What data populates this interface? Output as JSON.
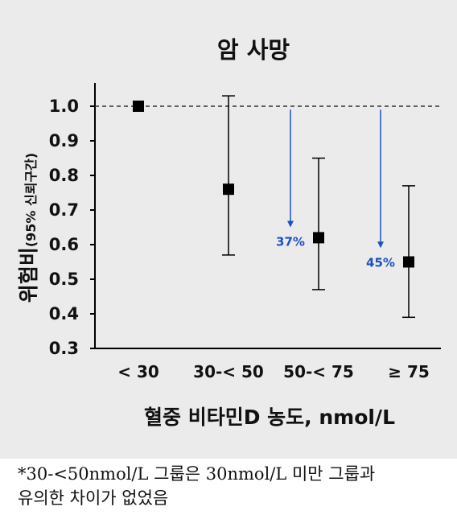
{
  "chart_data": {
    "type": "scatter",
    "title": "암 사망",
    "ylabel_main": "위험비",
    "ylabel_sub": "(95% 신뢰구간)",
    "xlabel": "혈중 비타민D 농도, nmol/L",
    "categories": [
      "< 30",
      "30-< 50",
      "50-< 75",
      "≥ 75"
    ],
    "ylim": [
      0.3,
      1.0
    ],
    "yticks": [
      "0.3",
      "0.4",
      "0.5",
      "0.6",
      "0.7",
      "0.8",
      "0.9",
      "1.0"
    ],
    "reference_line": 1.0,
    "points": [
      {
        "category": "< 30",
        "value": 1.0,
        "lower": null,
        "upper": null
      },
      {
        "category": "30-< 50",
        "value": 0.76,
        "lower": 0.57,
        "upper": 1.03
      },
      {
        "category": "50-< 75",
        "value": 0.62,
        "lower": 0.47,
        "upper": 0.85
      },
      {
        "category": "≥ 75",
        "value": 0.55,
        "lower": 0.39,
        "upper": 0.77
      }
    ],
    "annotations": [
      {
        "category": "50-< 75",
        "text": "37%",
        "from": 0.99,
        "to": 0.65
      },
      {
        "category": "≥ 75",
        "text": "45%",
        "from": 0.99,
        "to": 0.59
      }
    ],
    "colors": {
      "marker": "#000000",
      "annotation": "#1f4fbf",
      "reference": "#333333"
    }
  },
  "footnote": {
    "line1": "*30-<50nmol/L 그룹은 30nmol/L 미만 그룹과",
    "line2": "유의한 차이가 없었음"
  }
}
